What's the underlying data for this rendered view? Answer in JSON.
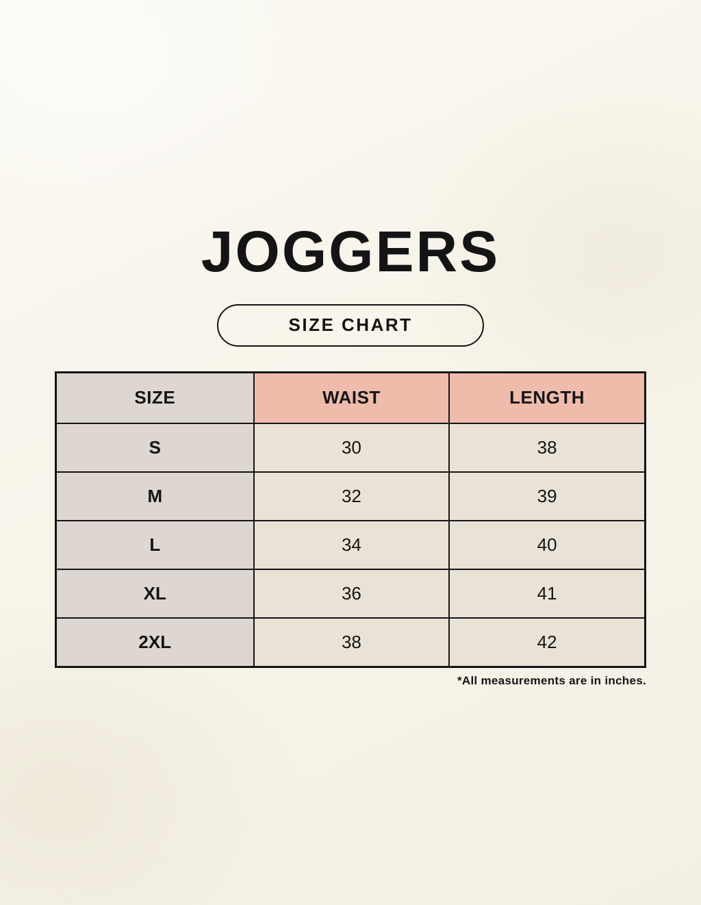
{
  "header": {
    "title": "JOGGERS",
    "badge_label": "SIZE CHART"
  },
  "chart_data": {
    "type": "table",
    "title": "JOGGERS SIZE CHART",
    "columns": [
      "SIZE",
      "WAIST",
      "LENGTH"
    ],
    "rows": [
      {
        "size": "S",
        "waist": "30",
        "length": "38"
      },
      {
        "size": "M",
        "waist": "32",
        "length": "39"
      },
      {
        "size": "L",
        "waist": "34",
        "length": "40"
      },
      {
        "size": "XL",
        "waist": "36",
        "length": "41"
      },
      {
        "size": "2XL",
        "waist": "38",
        "length": "42"
      }
    ],
    "units": "inches"
  },
  "footer": {
    "note": "*All measurements are in inches."
  },
  "colors": {
    "background": "#f7f4ea",
    "header_accent": "#efbcab",
    "size_column": "#ddd6d1",
    "cell": "#e9e2d6",
    "line": "#141414",
    "text": "#141414"
  }
}
